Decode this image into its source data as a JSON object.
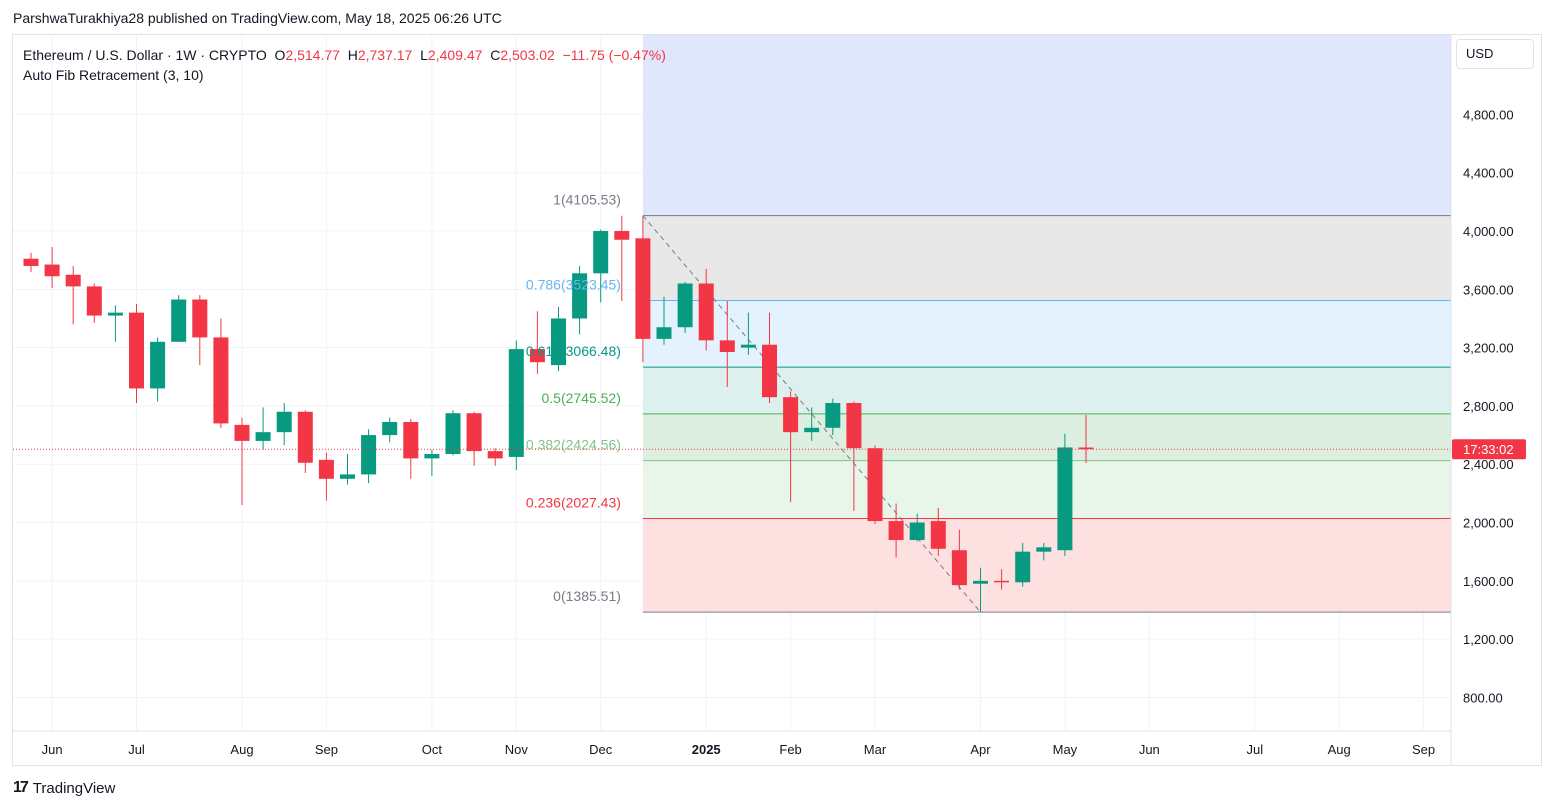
{
  "header": {
    "publish_line": "ParshwaTurakhiya28 published on TradingView.com, May 18, 2025 06:26 UTC"
  },
  "legend": {
    "symbol": "Ethereum / U.S. Dollar · 1W · CRYPTO",
    "o_label": "O",
    "o_value": "2,514.77",
    "h_label": "H",
    "h_value": "2,737.17",
    "l_label": "L",
    "l_value": "2,409.47",
    "c_label": "C",
    "c_value": "2,503.02",
    "change": "−11.75 (−0.47%)",
    "indicator": "Auto Fib Retracement (3, 10)"
  },
  "currency": "USD",
  "brand": {
    "logo": "17",
    "name": "TradingView"
  },
  "colors": {
    "up": "#089981",
    "down": "#f23645",
    "grid": "#f0f3fa"
  },
  "chart_data": {
    "type": "candlestick",
    "symbol": "ETHUSD",
    "interval": "1W",
    "ylim": [
      700,
      5600
    ],
    "y_ticks": [
      800,
      1200,
      1600,
      2000,
      2400,
      2800,
      3200,
      3600,
      4000,
      4400,
      4800
    ],
    "y_tick_labels": [
      "800.00",
      "1,200.00",
      "1,600.00",
      "2,000.00",
      "2,400.00",
      "2,800.00",
      "3,200.00",
      "3,600.00",
      "4,000.00",
      "4,400.00",
      "4,800.00"
    ],
    "month_labels": [
      {
        "label": "Jun",
        "week": 1
      },
      {
        "label": "Jul",
        "week": 5
      },
      {
        "label": "Aug",
        "week": 10
      },
      {
        "label": "Sep",
        "week": 14
      },
      {
        "label": "Oct",
        "week": 19
      },
      {
        "label": "Nov",
        "week": 23
      },
      {
        "label": "Dec",
        "week": 27
      },
      {
        "label": "2025",
        "week": 32,
        "bold": true
      },
      {
        "label": "Feb",
        "week": 36
      },
      {
        "label": "Mar",
        "week": 40
      },
      {
        "label": "Apr",
        "week": 45
      },
      {
        "label": "May",
        "week": 49
      },
      {
        "label": "Jun",
        "week": 53
      },
      {
        "label": "Jul",
        "week": 58
      },
      {
        "label": "Aug",
        "week": 62
      },
      {
        "label": "Sep",
        "week": 66
      }
    ],
    "candles": [
      {
        "o": 3810,
        "h": 3850,
        "l": 3720,
        "c": 3760
      },
      {
        "o": 3770,
        "h": 3890,
        "l": 3610,
        "c": 3690
      },
      {
        "o": 3700,
        "h": 3760,
        "l": 3360,
        "c": 3620
      },
      {
        "o": 3620,
        "h": 3640,
        "l": 3370,
        "c": 3420
      },
      {
        "o": 3420,
        "h": 3490,
        "l": 3240,
        "c": 3440
      },
      {
        "o": 3440,
        "h": 3500,
        "l": 2820,
        "c": 2920
      },
      {
        "o": 2920,
        "h": 3270,
        "l": 2830,
        "c": 3240
      },
      {
        "o": 3240,
        "h": 3560,
        "l": 3240,
        "c": 3530
      },
      {
        "o": 3530,
        "h": 3560,
        "l": 3080,
        "c": 3270
      },
      {
        "o": 3270,
        "h": 3400,
        "l": 2650,
        "c": 2680
      },
      {
        "o": 2670,
        "h": 2720,
        "l": 2120,
        "c": 2560
      },
      {
        "o": 2560,
        "h": 2790,
        "l": 2500,
        "c": 2620
      },
      {
        "o": 2620,
        "h": 2820,
        "l": 2530,
        "c": 2760
      },
      {
        "o": 2760,
        "h": 2770,
        "l": 2340,
        "c": 2410
      },
      {
        "o": 2430,
        "h": 2480,
        "l": 2150,
        "c": 2300
      },
      {
        "o": 2300,
        "h": 2470,
        "l": 2260,
        "c": 2330
      },
      {
        "o": 2330,
        "h": 2640,
        "l": 2270,
        "c": 2600
      },
      {
        "o": 2600,
        "h": 2720,
        "l": 2550,
        "c": 2690
      },
      {
        "o": 2690,
        "h": 2710,
        "l": 2300,
        "c": 2440
      },
      {
        "o": 2440,
        "h": 2500,
        "l": 2320,
        "c": 2470
      },
      {
        "o": 2470,
        "h": 2770,
        "l": 2460,
        "c": 2750
      },
      {
        "o": 2750,
        "h": 2760,
        "l": 2390,
        "c": 2490
      },
      {
        "o": 2490,
        "h": 2510,
        "l": 2390,
        "c": 2440
      },
      {
        "o": 2450,
        "h": 3250,
        "l": 2360,
        "c": 3190
      },
      {
        "o": 3190,
        "h": 3450,
        "l": 3020,
        "c": 3100
      },
      {
        "o": 3080,
        "h": 3480,
        "l": 3040,
        "c": 3400
      },
      {
        "o": 3400,
        "h": 3760,
        "l": 3290,
        "c": 3710
      },
      {
        "o": 3710,
        "h": 4010,
        "l": 3510,
        "c": 4000
      },
      {
        "o": 4000,
        "h": 4105,
        "l": 3520,
        "c": 3940
      },
      {
        "o": 3950,
        "h": 4100,
        "l": 3100,
        "c": 3260
      },
      {
        "o": 3260,
        "h": 3550,
        "l": 3220,
        "c": 3340
      },
      {
        "o": 3340,
        "h": 3650,
        "l": 3300,
        "c": 3640
      },
      {
        "o": 3640,
        "h": 3740,
        "l": 3180,
        "c": 3250
      },
      {
        "o": 3250,
        "h": 3520,
        "l": 2930,
        "c": 3170
      },
      {
        "o": 3200,
        "h": 3440,
        "l": 3150,
        "c": 3220
      },
      {
        "o": 3220,
        "h": 3440,
        "l": 2820,
        "c": 2860
      },
      {
        "o": 2860,
        "h": 2900,
        "l": 2140,
        "c": 2620
      },
      {
        "o": 2620,
        "h": 2790,
        "l": 2560,
        "c": 2650
      },
      {
        "o": 2650,
        "h": 2850,
        "l": 2600,
        "c": 2820
      },
      {
        "o": 2820,
        "h": 2830,
        "l": 2080,
        "c": 2510
      },
      {
        "o": 2510,
        "h": 2530,
        "l": 1990,
        "c": 2010
      },
      {
        "o": 2010,
        "h": 2130,
        "l": 1760,
        "c": 1880
      },
      {
        "o": 1880,
        "h": 2060,
        "l": 1870,
        "c": 2000
      },
      {
        "o": 2010,
        "h": 2100,
        "l": 1770,
        "c": 1820
      },
      {
        "o": 1810,
        "h": 1950,
        "l": 1540,
        "c": 1570
      },
      {
        "o": 1580,
        "h": 1690,
        "l": 1385,
        "c": 1600
      },
      {
        "o": 1600,
        "h": 1680,
        "l": 1540,
        "c": 1590
      },
      {
        "o": 1590,
        "h": 1860,
        "l": 1560,
        "c": 1800
      },
      {
        "o": 1800,
        "h": 1860,
        "l": 1740,
        "c": 1830
      },
      {
        "o": 1810,
        "h": 2610,
        "l": 1770,
        "c": 2515
      },
      {
        "o": 2514.77,
        "h": 2737.17,
        "l": 2409.47,
        "c": 2503.02
      }
    ],
    "current_price": 2503.02,
    "countdown_label": "17:33:02",
    "fib": {
      "start_week": 29,
      "high_week": 29,
      "high": 4105.53,
      "low_week": 45,
      "low": 1385.51,
      "levels": [
        {
          "ratio": 1,
          "price": 4105.53,
          "label": "1(4105.53)",
          "color": "#787b86",
          "fill": "#e8e8e8"
        },
        {
          "ratio": 0.786,
          "price": 3523.45,
          "label": "0.786(3523.45)",
          "color": "#64b5f6",
          "fill": "#e3f2fd"
        },
        {
          "ratio": 0.618,
          "price": 3066.48,
          "label": "0.618(3066.48)",
          "color": "#089981",
          "fill": "#ddf0ed"
        },
        {
          "ratio": 0.5,
          "price": 2745.52,
          "label": "0.5(2745.52)",
          "color": "#4caf50",
          "fill": "#dcefe0"
        },
        {
          "ratio": 0.382,
          "price": 2424.56,
          "label": "0.382(2424.56)",
          "color": "#81c784",
          "fill": "#e8f5e9"
        },
        {
          "ratio": 0.236,
          "price": 2027.43,
          "label": "0.236(2027.43)",
          "color": "#f23645",
          "fill": "#e8f5e9"
        },
        {
          "ratio": 0,
          "price": 1385.51,
          "label": "0(1385.51)",
          "color": "#787b86",
          "fill": "#fde0e0"
        }
      ],
      "above_fill": "#e0e6fc"
    }
  }
}
